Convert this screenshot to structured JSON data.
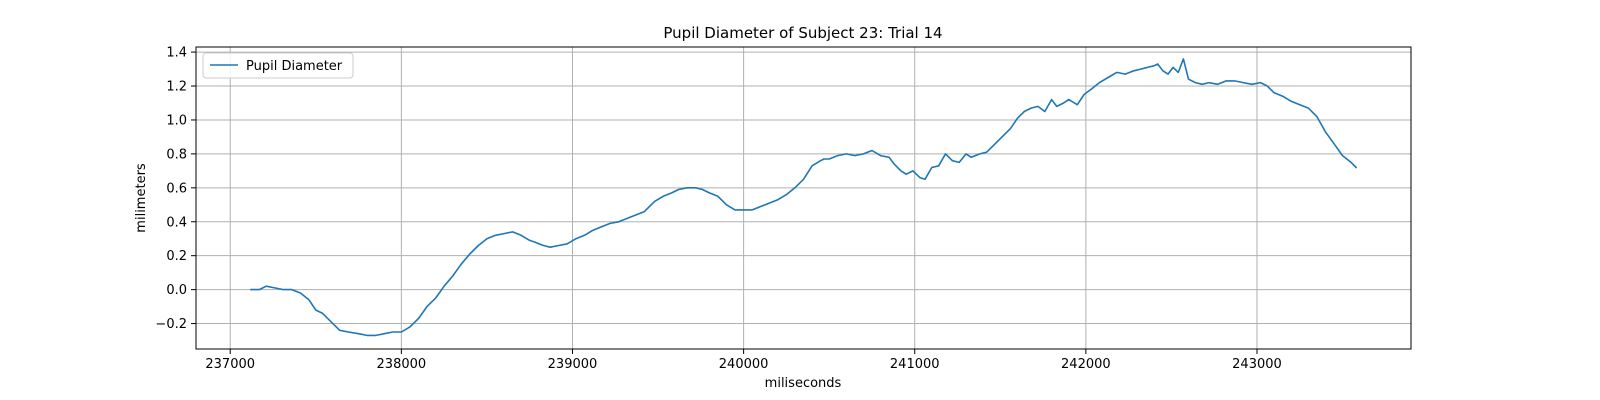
{
  "chart_data": {
    "type": "line",
    "title": "Pupil Diameter of Subject 23: Trial 14",
    "xlabel": "miliseconds",
    "ylabel": "milimeters",
    "xlim": [
      236800,
      243900
    ],
    "ylim": [
      -0.35,
      1.43
    ],
    "x_ticks": [
      237000,
      238000,
      239000,
      240000,
      241000,
      242000,
      243000
    ],
    "y_ticks": [
      -0.2,
      0.0,
      0.2,
      0.4,
      0.6,
      0.8,
      1.0,
      1.2,
      1.4
    ],
    "x_tick_labels": [
      "237000",
      "238000",
      "239000",
      "240000",
      "241000",
      "242000",
      "243000"
    ],
    "y_tick_labels": [
      "−0.2",
      "0.0",
      "0.2",
      "0.4",
      "0.6",
      "0.8",
      "1.0",
      "1.2",
      "1.4"
    ],
    "grid": true,
    "legend_position": "top-left",
    "colors": {
      "series": "#1f77b4",
      "grid": "#b0b0b0",
      "axes": "#000000"
    },
    "series": [
      {
        "name": "Pupil Diameter",
        "x": [
          237120,
          237170,
          237210,
          237260,
          237310,
          237360,
          237410,
          237460,
          237500,
          237540,
          237590,
          237640,
          237690,
          237750,
          237800,
          237850,
          237900,
          237950,
          238000,
          238050,
          238100,
          238150,
          238200,
          238250,
          238300,
          238350,
          238400,
          238450,
          238500,
          238550,
          238600,
          238650,
          238700,
          238750,
          238780,
          238830,
          238870,
          238920,
          238970,
          239020,
          239070,
          239120,
          239170,
          239220,
          239270,
          239320,
          239370,
          239420,
          239480,
          239530,
          239580,
          239620,
          239670,
          239720,
          239760,
          239800,
          239850,
          239900,
          239950,
          240000,
          240050,
          240100,
          240150,
          240200,
          240250,
          240300,
          240350,
          240400,
          240450,
          240470,
          240500,
          240550,
          240600,
          240650,
          240700,
          240750,
          240800,
          240850,
          240880,
          240920,
          240950,
          240990,
          241030,
          241060,
          241100,
          241140,
          241180,
          241220,
          241260,
          241300,
          241330,
          241380,
          241420,
          241460,
          241510,
          241560,
          241600,
          241640,
          241680,
          241720,
          241760,
          241800,
          241830,
          241870,
          241900,
          241950,
          241990,
          242030,
          242080,
          242130,
          242180,
          242230,
          242280,
          242320,
          242360,
          242400,
          242420,
          242450,
          242480,
          242510,
          242540,
          242570,
          242600,
          242640,
          242680,
          242720,
          242770,
          242820,
          242870,
          242920,
          242970,
          243020,
          243060,
          243100,
          243150,
          243200,
          243250,
          243300,
          243350,
          243400,
          243450,
          243500,
          243550,
          243580
        ],
        "y": [
          0.0,
          0.0,
          0.02,
          0.01,
          0.0,
          0.0,
          -0.02,
          -0.06,
          -0.12,
          -0.14,
          -0.19,
          -0.24,
          -0.25,
          -0.26,
          -0.27,
          -0.27,
          -0.26,
          -0.25,
          -0.25,
          -0.22,
          -0.17,
          -0.1,
          -0.05,
          0.02,
          0.08,
          0.15,
          0.21,
          0.26,
          0.3,
          0.32,
          0.33,
          0.34,
          0.32,
          0.29,
          0.28,
          0.26,
          0.25,
          0.26,
          0.27,
          0.3,
          0.32,
          0.35,
          0.37,
          0.39,
          0.4,
          0.42,
          0.44,
          0.46,
          0.52,
          0.55,
          0.57,
          0.59,
          0.6,
          0.6,
          0.59,
          0.57,
          0.55,
          0.5,
          0.47,
          0.47,
          0.47,
          0.49,
          0.51,
          0.53,
          0.56,
          0.6,
          0.65,
          0.73,
          0.76,
          0.77,
          0.77,
          0.79,
          0.8,
          0.79,
          0.8,
          0.82,
          0.79,
          0.78,
          0.74,
          0.7,
          0.68,
          0.7,
          0.66,
          0.65,
          0.72,
          0.73,
          0.8,
          0.76,
          0.75,
          0.8,
          0.78,
          0.8,
          0.81,
          0.85,
          0.9,
          0.95,
          1.01,
          1.05,
          1.07,
          1.08,
          1.05,
          1.12,
          1.08,
          1.1,
          1.12,
          1.09,
          1.15,
          1.18,
          1.22,
          1.25,
          1.28,
          1.27,
          1.29,
          1.3,
          1.31,
          1.32,
          1.33,
          1.29,
          1.27,
          1.31,
          1.28,
          1.36,
          1.24,
          1.22,
          1.21,
          1.22,
          1.21,
          1.23,
          1.23,
          1.22,
          1.21,
          1.22,
          1.2,
          1.16,
          1.14,
          1.11,
          1.09,
          1.07,
          1.02,
          0.93,
          0.86,
          0.79,
          0.75,
          0.72
        ]
      }
    ]
  }
}
